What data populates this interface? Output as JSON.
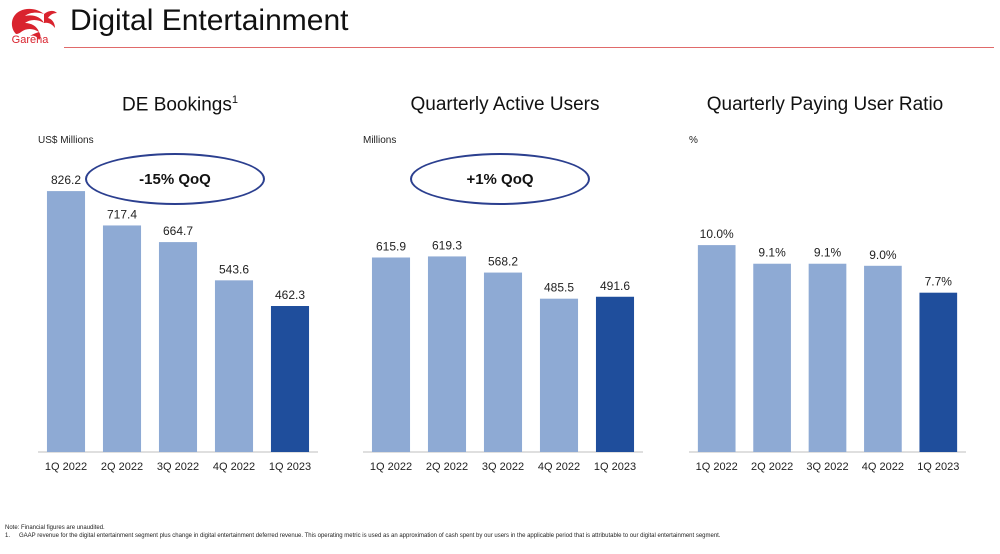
{
  "header": {
    "logo_text": "Garena",
    "title": "Digital Entertainment"
  },
  "colors": {
    "accent_red": "#d9232e",
    "bar_light": "#8eaad4",
    "bar_dark": "#1f4e9c",
    "ellipse_border": "#2b3f8f"
  },
  "chart_data": [
    {
      "type": "bar",
      "title": "DE Bookings",
      "title_superscript": "1",
      "unit_label": "US$ Millions",
      "annotation": "-15% QoQ",
      "categories": [
        "1Q 2022",
        "2Q 2022",
        "3Q 2022",
        "4Q 2022",
        "1Q 2023"
      ],
      "values": [
        826.2,
        717.4,
        664.7,
        543.6,
        462.3
      ],
      "value_labels": [
        "826.2",
        "717.4",
        "664.7",
        "543.6",
        "462.3"
      ],
      "highlight_last": true,
      "ylim": [
        0,
        950
      ],
      "grid": false
    },
    {
      "type": "bar",
      "title": "Quarterly Active Users",
      "title_superscript": "",
      "unit_label": "Millions",
      "annotation": "+1% QoQ",
      "categories": [
        "1Q 2022",
        "2Q 2022",
        "3Q 2022",
        "4Q 2022",
        "1Q 2023"
      ],
      "values": [
        615.9,
        619.3,
        568.2,
        485.5,
        491.6
      ],
      "value_labels": [
        "615.9",
        "619.3",
        "568.2",
        "485.5",
        "491.6"
      ],
      "highlight_last": true,
      "ylim": [
        0,
        950
      ],
      "grid": false
    },
    {
      "type": "bar",
      "title": "Quarterly Paying User Ratio",
      "title_superscript": "",
      "unit_label": "%",
      "annotation": "",
      "categories": [
        "1Q 2022",
        "2Q 2022",
        "3Q 2022",
        "4Q 2022",
        "1Q 2023"
      ],
      "values": [
        10.0,
        9.1,
        9.1,
        9.0,
        7.7
      ],
      "value_labels": [
        "10.0%",
        "9.1%",
        "9.1%",
        "9.0%",
        "7.7%"
      ],
      "highlight_last": true,
      "ylim": [
        0,
        14.5
      ],
      "grid": false
    }
  ],
  "notes": {
    "note": "Note: Financial figures are unaudited.",
    "footnote_number": "1.",
    "footnote_text": "GAAP revenue for the digital entertainment segment plus change in digital entertainment deferred revenue. This operating metric is used as an approximation of cash spent by our users in the applicable period that is attributable to our digital entertainment segment."
  }
}
